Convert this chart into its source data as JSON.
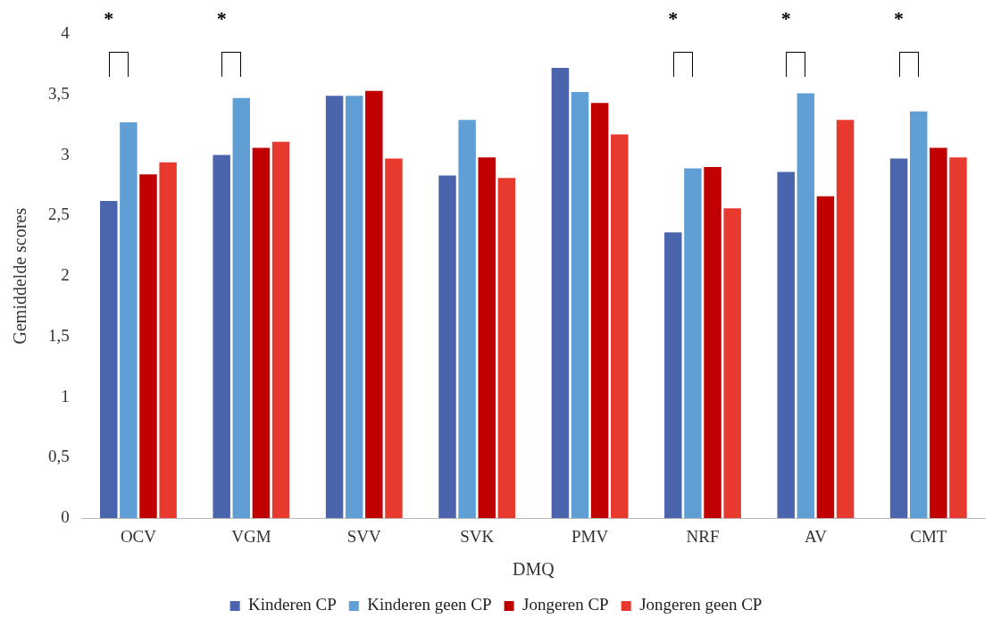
{
  "chart_data": {
    "type": "bar",
    "xlabel": "DMQ",
    "ylabel": "Gemiddelde scores",
    "categories": [
      "OCV",
      "VGM",
      "SVV",
      "SVK",
      "PMV",
      "NRF",
      "AV",
      "CMT"
    ],
    "series": [
      {
        "name": "Kinderen CP",
        "color": "#4a64ad",
        "values": [
          2.62,
          3.0,
          3.49,
          2.83,
          3.72,
          2.36,
          2.86,
          2.97
        ]
      },
      {
        "name": "Kinderen geen CP",
        "color": "#5f9fd6",
        "values": [
          3.27,
          3.47,
          3.49,
          3.29,
          3.52,
          2.89,
          3.51,
          3.36
        ]
      },
      {
        "name": "Jongeren CP",
        "color": "#c00000",
        "values": [
          2.84,
          3.06,
          3.53,
          2.98,
          3.43,
          2.9,
          2.66,
          3.06
        ]
      },
      {
        "name": "Jongeren geen CP",
        "color": "#e8392e",
        "values": [
          2.94,
          3.11,
          2.97,
          2.81,
          3.17,
          2.56,
          3.29,
          2.98
        ]
      }
    ],
    "ylim": [
      0,
      4
    ],
    "yticks": [
      0,
      {
        "value": 0.5,
        "label": "0,5"
      },
      1,
      {
        "value": 1.5,
        "label": "1,5"
      },
      2,
      {
        "value": 2.5,
        "label": "2,5"
      },
      3,
      {
        "value": 3.5,
        "label": "3,5"
      },
      4
    ],
    "annotations": [
      "*",
      "*",
      "*",
      "*",
      "*"
    ],
    "grid": false,
    "legend": "bottom"
  }
}
